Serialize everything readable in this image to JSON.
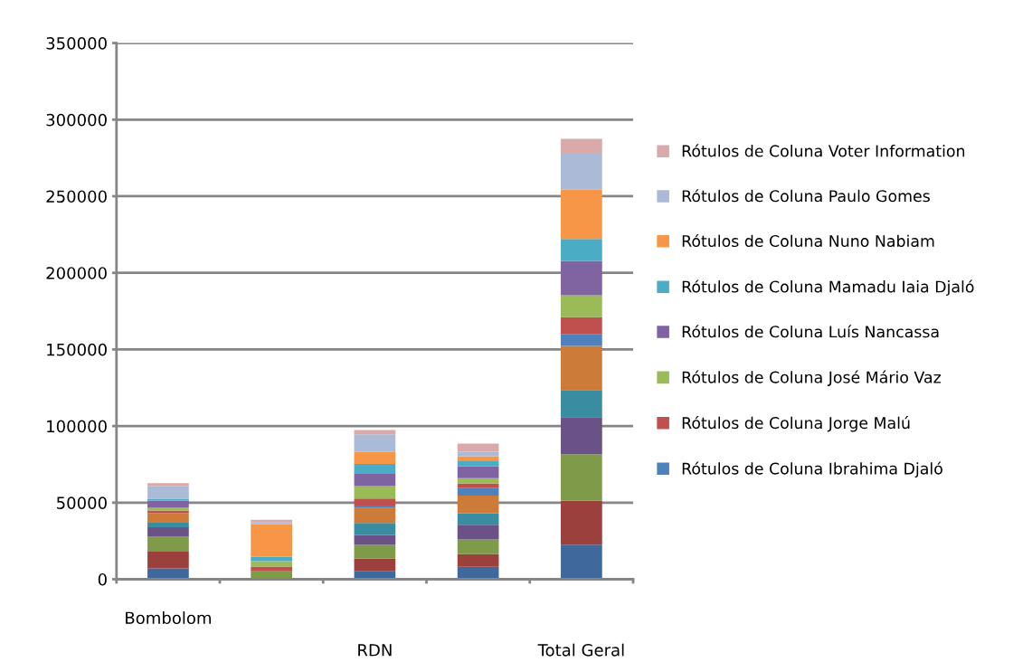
{
  "chart_data": {
    "type": "bar",
    "stacked": true,
    "categories": [
      "Bombolom",
      null,
      "RDN",
      null,
      "Total Geral"
    ],
    "series": [
      {
        "color": "#3f699d",
        "values": [
          7100,
          0,
          5200,
          8100,
          22600
        ]
      },
      {
        "color": "#9c403d",
        "values": [
          10900,
          0,
          8300,
          8300,
          28600
        ]
      },
      {
        "color": "#7f9a48",
        "values": [
          9700,
          5200,
          8900,
          9500,
          30400
        ]
      },
      {
        "color": "#6a5186",
        "values": [
          6200,
          0,
          6500,
          9700,
          24200
        ]
      },
      {
        "color": "#3a8ca1",
        "values": [
          3000,
          0,
          7900,
          7500,
          17700
        ]
      },
      {
        "color": "#cc7b38",
        "values": [
          6300,
          0,
          9700,
          11500,
          28800
        ]
      },
      {
        "name": "Rótulos de Coluna Ibrahima Djaló",
        "color": "#4f81bd",
        "values": [
          null,
          0,
          1600,
          4800,
          7800
        ]
      },
      {
        "name": "Rótulos de Coluna Jorge Malú",
        "color": "#c0504d",
        "values": [
          1600,
          3000,
          4600,
          3200,
          11000
        ]
      },
      {
        "name": "Rótulos de Coluna José Mário Vaz",
        "color": "#9bbb59",
        "values": [
          1800,
          3600,
          8100,
          3400,
          14200
        ]
      },
      {
        "name": "Rótulos de Coluna Luís Nancassa",
        "color": "#8064a2",
        "values": [
          4600,
          0,
          7900,
          7700,
          22500
        ]
      },
      {
        "name": "Rótulos de Coluna Mamadu Iaia Djaló",
        "color": "#4bacc6",
        "values": [
          1400,
          2800,
          6500,
          3400,
          14300
        ]
      },
      {
        "name": "Rótulos de Coluna Nuno Nabiam",
        "color": "#f79646",
        "values": [
          null,
          21400,
          7900,
          3200,
          32100
        ]
      },
      {
        "name": "Rótulos de Coluna Paulo Gomes",
        "color": "#aabad7",
        "values": [
          8300,
          1000,
          11500,
          3000,
          23600
        ]
      },
      {
        "name": "Rótulos de Coluna Voter Information",
        "color": "#d9aaa9",
        "values": [
          1800,
          1800,
          2800,
          5200,
          9700
        ]
      }
    ],
    "ylim": [
      0,
      350000
    ],
    "yticks": [
      0,
      50000,
      100000,
      150000,
      200000,
      250000,
      300000,
      350000
    ],
    "grid": "y",
    "legend": "right"
  }
}
